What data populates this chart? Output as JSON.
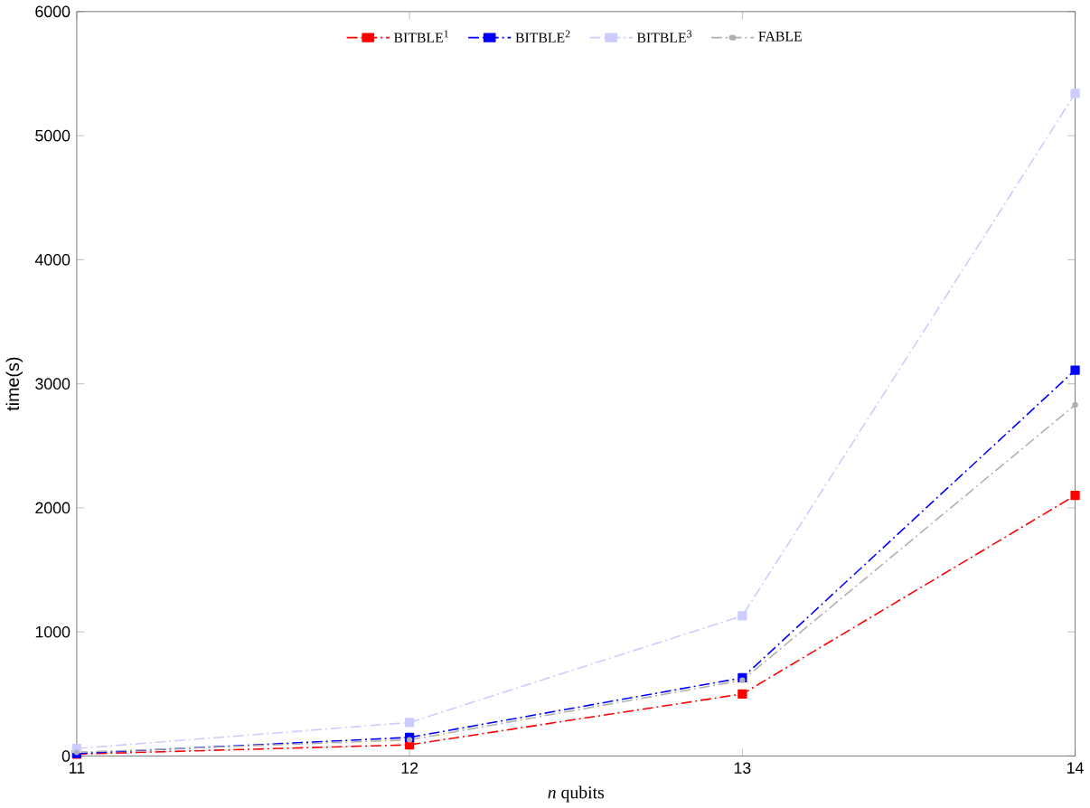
{
  "chart_data": {
    "type": "line",
    "xlabel": "*n* qubits",
    "ylabel": "time(s)",
    "x": [
      11,
      12,
      13,
      14
    ],
    "xlim": [
      11,
      14
    ],
    "xticks": [
      11,
      12,
      13,
      14
    ],
    "ylim": [
      0,
      6000
    ],
    "yticks": [
      0,
      1000,
      2000,
      3000,
      4000,
      5000,
      6000
    ],
    "legend": "top",
    "line_style": "dashed",
    "grid": false,
    "series": [
      {
        "name": "BITBLE$^{1}$",
        "color": "#ff0000",
        "marker": "square",
        "values": [
          15,
          90,
          500,
          2100
        ]
      },
      {
        "name": "BITBLE$^{2}$",
        "color": "#0000ff",
        "marker": "square",
        "values": [
          20,
          150,
          630,
          3110
        ]
      },
      {
        "name": "BITBLE$^{3}$",
        "color": "#ccccff",
        "marker": "square",
        "values": [
          60,
          270,
          1130,
          5340
        ]
      },
      {
        "name": "FABLE",
        "color": "#b0b0b0",
        "marker": "circle",
        "values": [
          30,
          130,
          610,
          2830
        ]
      }
    ]
  }
}
